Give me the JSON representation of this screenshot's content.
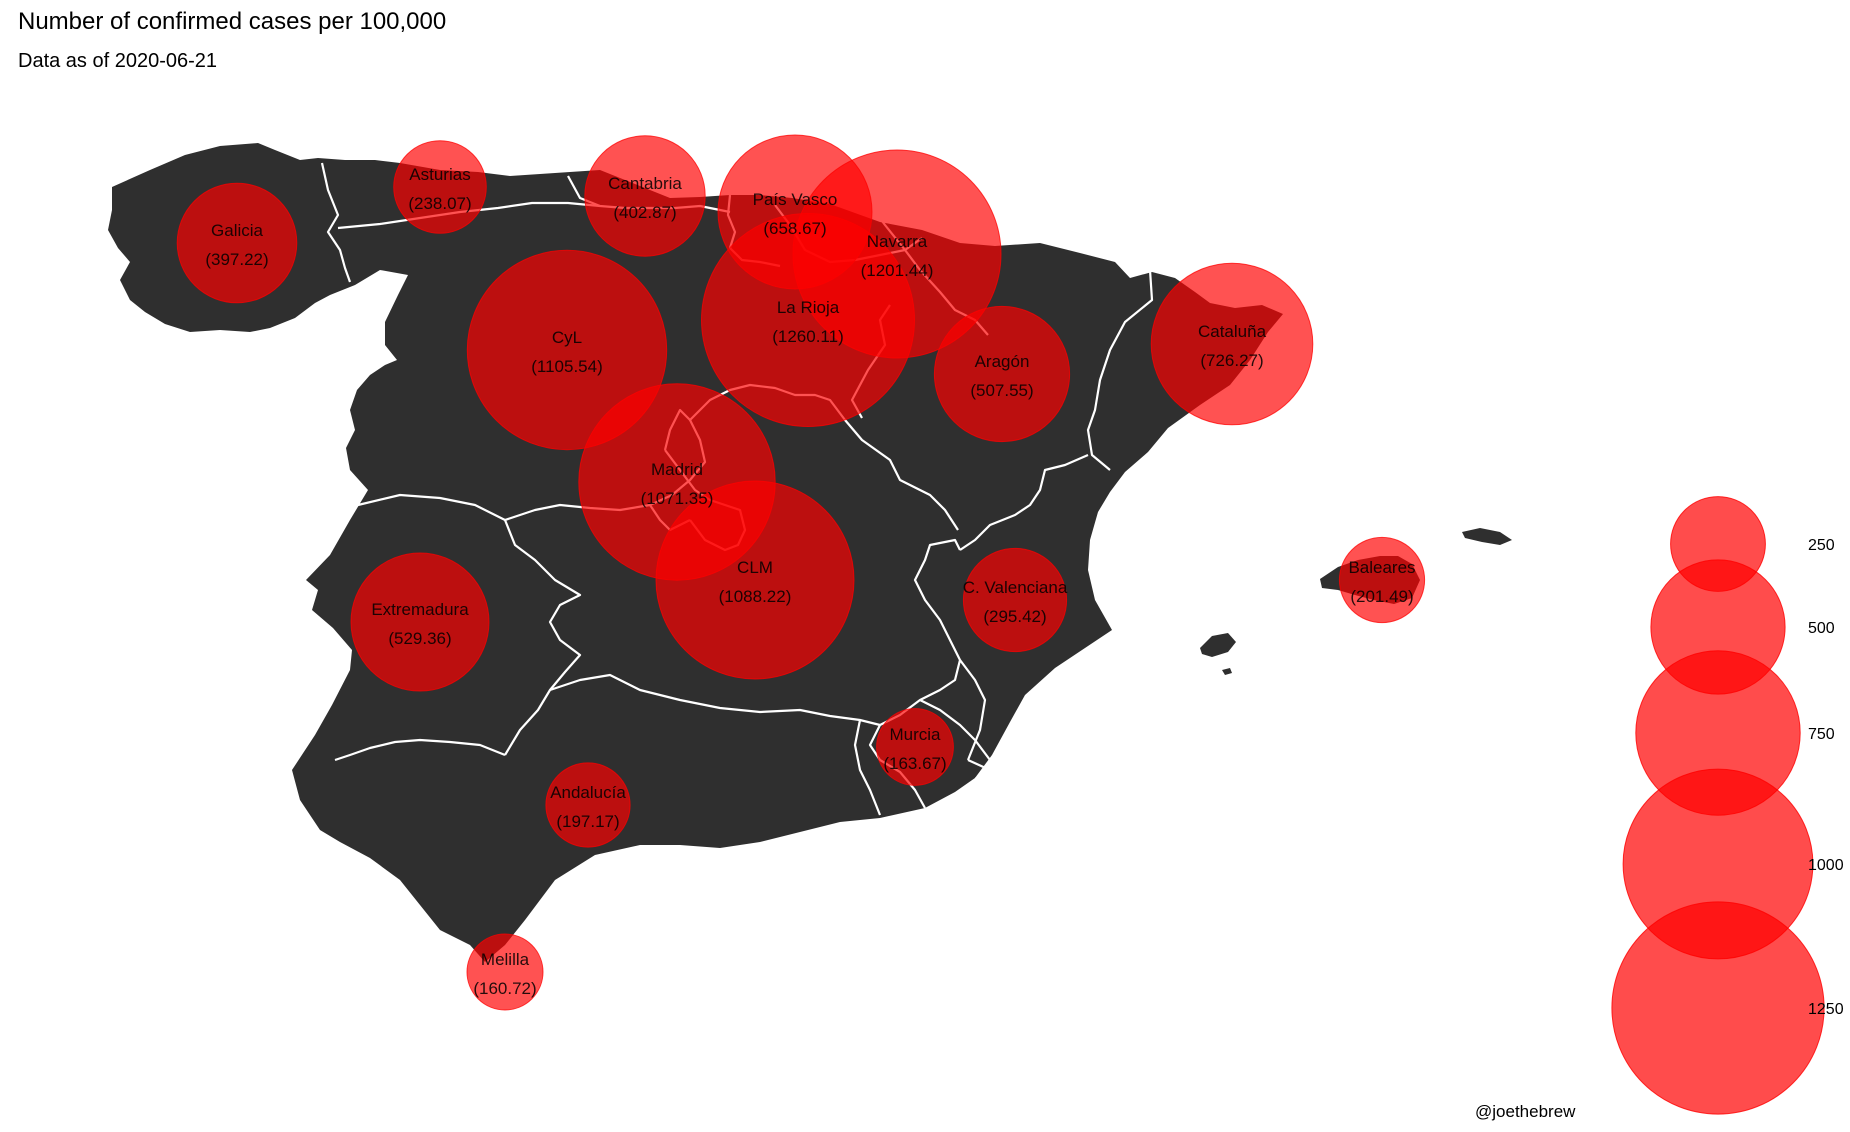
{
  "header": {
    "title": "Number of confirmed cases per 100,000",
    "subtitle": "Data as of 2020-06-21"
  },
  "caption": "@joethebrew",
  "colors": {
    "land": "#2f2f2f",
    "border": "#ffffff",
    "bubble": "#ff0000"
  },
  "chart_data": {
    "type": "bubble-map",
    "title": "Number of confirmed cases per 100,000",
    "subtitle": "Data as of 2020-06-21",
    "regions": [
      {
        "id": "galicia",
        "name": "Galicia",
        "value": 397.22,
        "value_label": "(397.22)"
      },
      {
        "id": "asturias",
        "name": "Asturias",
        "value": 238.07,
        "value_label": "(238.07)"
      },
      {
        "id": "cantabria",
        "name": "Cantabria",
        "value": 402.87,
        "value_label": "(402.87)"
      },
      {
        "id": "pais-vasco",
        "name": "País Vasco",
        "value": 658.67,
        "value_label": "(658.67)"
      },
      {
        "id": "navarra",
        "name": "Navarra",
        "value": 1201.44,
        "value_label": "(1201.44)"
      },
      {
        "id": "la-rioja",
        "name": "La Rioja",
        "value": 1260.11,
        "value_label": "(1260.11)"
      },
      {
        "id": "cyl",
        "name": "CyL",
        "value": 1105.54,
        "value_label": "(1105.54)"
      },
      {
        "id": "aragon",
        "name": "Aragón",
        "value": 507.55,
        "value_label": "(507.55)"
      },
      {
        "id": "cataluna",
        "name": "Cataluña",
        "value": 726.27,
        "value_label": "(726.27)"
      },
      {
        "id": "madrid",
        "name": "Madrid",
        "value": 1071.35,
        "value_label": "(1071.35)"
      },
      {
        "id": "clm",
        "name": "CLM",
        "value": 1088.22,
        "value_label": "(1088.22)"
      },
      {
        "id": "c-valenciana",
        "name": "C. Valenciana",
        "value": 295.42,
        "value_label": "(295.42)"
      },
      {
        "id": "extremadura",
        "name": "Extremadura",
        "value": 529.36,
        "value_label": "(529.36)"
      },
      {
        "id": "baleares",
        "name": "Baleares",
        "value": 201.49,
        "value_label": "(201.49)"
      },
      {
        "id": "murcia",
        "name": "Murcia",
        "value": 163.67,
        "value_label": "(163.67)"
      },
      {
        "id": "andalucia",
        "name": "Andalucía",
        "value": 197.17,
        "value_label": "(197.17)"
      },
      {
        "id": "melilla",
        "name": "Melilla",
        "value": 160.72,
        "value_label": "(160.72)"
      }
    ],
    "legend": {
      "placement": "right",
      "sizes": [
        {
          "value": 250,
          "label": "250"
        },
        {
          "value": 500,
          "label": "500"
        },
        {
          "value": 750,
          "label": "750"
        },
        {
          "value": 1000,
          "label": "1000"
        },
        {
          "value": 1250,
          "label": "1250"
        }
      ]
    }
  }
}
